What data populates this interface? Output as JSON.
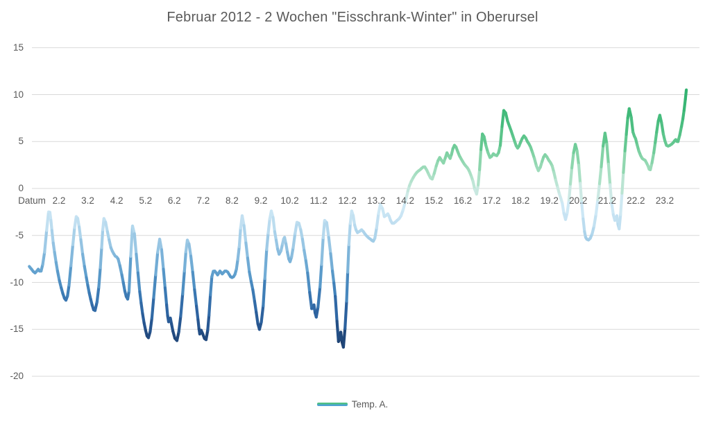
{
  "title": "Februar 2012 - 2 Wochen \"Eisschrank-Winter\" in Oberursel",
  "legend": {
    "label": "Temp. A.",
    "swatch_top_color": "#4fbf85",
    "swatch_bottom_color": "#4da3d4"
  },
  "axes": {
    "y_ticks": [
      15,
      10,
      5,
      0,
      -5,
      -10,
      -15,
      -20
    ],
    "x_axis_title": "Datum",
    "x_day_labels": [
      "2.2",
      "3.2",
      "4.2",
      "5.2",
      "6.2",
      "7.2",
      "8.2",
      "9.2",
      "10.2",
      "11.2",
      "12.2",
      "13.2",
      "14.2",
      "15.2",
      "16.2",
      "17.2",
      "18.2",
      "19.2",
      "20.2",
      "21.2",
      "22.2",
      "23.2"
    ],
    "gridline_color": "#d9d9d9",
    "text_color": "#595959"
  },
  "chart_data": {
    "type": "line",
    "title": "Februar 2012 - 2 Wochen \"Eisschrank-Winter\" in Oberursel",
    "xlabel": "Datum",
    "ylabel": "",
    "ylim": [
      -20,
      15
    ],
    "x_unit": "Tag im Februar 2012 (Dezimaltag)",
    "y_unit": "°C",
    "grid": "horizontal",
    "legend_position": "bottom-center",
    "color_scale": [
      [
        -17,
        "#1c3a66"
      ],
      [
        -15,
        "#24518a"
      ],
      [
        -13,
        "#2f66a3"
      ],
      [
        -11,
        "#3f7fb8"
      ],
      [
        -9,
        "#5f9fcd"
      ],
      [
        -7,
        "#86badd"
      ],
      [
        -5,
        "#aad2ea"
      ],
      [
        -3.5,
        "#c2e0f1"
      ],
      [
        -2,
        "#cfe9f6"
      ],
      [
        -0.5,
        "#cfeae6"
      ],
      [
        1,
        "#b2e2cb"
      ],
      [
        3,
        "#8dd6ad"
      ],
      [
        5,
        "#62c78f"
      ],
      [
        7,
        "#49bd7f"
      ],
      [
        9,
        "#38b674"
      ],
      [
        11,
        "#2fb06e"
      ]
    ],
    "series": [
      {
        "name": "Temp. A.",
        "points": [
          [
            0.97,
            -8.3
          ],
          [
            1.05,
            -8.6
          ],
          [
            1.17,
            -9.0
          ],
          [
            1.28,
            -8.6
          ],
          [
            1.38,
            -8.8
          ],
          [
            1.5,
            -6.8
          ],
          [
            1.64,
            -2.5
          ],
          [
            1.72,
            -3.4
          ],
          [
            1.8,
            -5.8
          ],
          [
            1.95,
            -8.8
          ],
          [
            2.08,
            -10.6
          ],
          [
            2.24,
            -11.9
          ],
          [
            2.35,
            -10.3
          ],
          [
            2.48,
            -6.0
          ],
          [
            2.6,
            -3.0
          ],
          [
            2.7,
            -4.1
          ],
          [
            2.82,
            -7.0
          ],
          [
            2.95,
            -9.5
          ],
          [
            3.1,
            -11.8
          ],
          [
            3.25,
            -13.0
          ],
          [
            3.38,
            -10.5
          ],
          [
            3.48,
            -6.3
          ],
          [
            3.56,
            -3.2
          ],
          [
            3.68,
            -4.6
          ],
          [
            3.8,
            -6.3
          ],
          [
            3.95,
            -7.2
          ],
          [
            4.05,
            -7.5
          ],
          [
            4.18,
            -9.2
          ],
          [
            4.33,
            -11.5
          ],
          [
            4.43,
            -10.9
          ],
          [
            4.55,
            -4.0
          ],
          [
            4.68,
            -7.0
          ],
          [
            4.8,
            -11.0
          ],
          [
            4.95,
            -14.3
          ],
          [
            5.1,
            -15.9
          ],
          [
            5.22,
            -13.8
          ],
          [
            5.35,
            -9.2
          ],
          [
            5.49,
            -5.4
          ],
          [
            5.62,
            -8.6
          ],
          [
            5.73,
            -12.4
          ],
          [
            5.8,
            -14.2
          ],
          [
            5.86,
            -13.8
          ],
          [
            5.95,
            -15.2
          ],
          [
            6.09,
            -16.2
          ],
          [
            6.22,
            -13.6
          ],
          [
            6.35,
            -8.8
          ],
          [
            6.45,
            -5.5
          ],
          [
            6.57,
            -7.2
          ],
          [
            6.7,
            -10.8
          ],
          [
            6.82,
            -14.0
          ],
          [
            6.88,
            -15.5
          ],
          [
            6.93,
            -15.1
          ],
          [
            7.1,
            -16.1
          ],
          [
            7.2,
            -13.5
          ],
          [
            7.3,
            -9.4
          ],
          [
            7.4,
            -8.8
          ],
          [
            7.5,
            -9.2
          ],
          [
            7.58,
            -8.8
          ],
          [
            7.66,
            -9.1
          ],
          [
            7.75,
            -8.8
          ],
          [
            7.85,
            -8.9
          ],
          [
            7.95,
            -9.4
          ],
          [
            8.05,
            -9.4
          ],
          [
            8.15,
            -8.6
          ],
          [
            8.25,
            -6.2
          ],
          [
            8.35,
            -2.9
          ],
          [
            8.48,
            -5.8
          ],
          [
            8.6,
            -8.9
          ],
          [
            8.72,
            -10.8
          ],
          [
            8.84,
            -13.2
          ],
          [
            8.95,
            -15.0
          ],
          [
            9.08,
            -12.5
          ],
          [
            9.2,
            -6.5
          ],
          [
            9.36,
            -2.4
          ],
          [
            9.48,
            -4.6
          ],
          [
            9.63,
            -7.0
          ],
          [
            9.75,
            -5.9
          ],
          [
            9.82,
            -5.2
          ],
          [
            9.92,
            -6.8
          ],
          [
            10.01,
            -7.8
          ],
          [
            10.12,
            -6.3
          ],
          [
            10.25,
            -3.6
          ],
          [
            10.38,
            -4.4
          ],
          [
            10.5,
            -6.6
          ],
          [
            10.62,
            -9.0
          ],
          [
            10.76,
            -12.8
          ],
          [
            10.84,
            -12.4
          ],
          [
            10.92,
            -13.7
          ],
          [
            11.05,
            -10.5
          ],
          [
            11.21,
            -3.4
          ],
          [
            11.35,
            -5.2
          ],
          [
            11.48,
            -8.8
          ],
          [
            11.58,
            -11.5
          ],
          [
            11.69,
            -16.3
          ],
          [
            11.77,
            -15.3
          ],
          [
            11.86,
            -16.9
          ],
          [
            11.97,
            -12.0
          ],
          [
            12.05,
            -6.0
          ],
          [
            12.15,
            -2.4
          ],
          [
            12.25,
            -3.9
          ],
          [
            12.35,
            -4.7
          ],
          [
            12.49,
            -4.4
          ],
          [
            12.62,
            -4.9
          ],
          [
            12.8,
            -5.4
          ],
          [
            12.95,
            -5.3
          ],
          [
            13.14,
            -1.7
          ],
          [
            13.28,
            -3.0
          ],
          [
            13.4,
            -2.7
          ],
          [
            13.55,
            -3.7
          ],
          [
            13.72,
            -3.4
          ],
          [
            13.86,
            -2.9
          ],
          [
            14.0,
            -1.5
          ],
          [
            14.15,
            0.3
          ],
          [
            14.35,
            1.5
          ],
          [
            14.52,
            2.0
          ],
          [
            14.68,
            2.3
          ],
          [
            14.82,
            1.5
          ],
          [
            14.94,
            1.0
          ],
          [
            15.08,
            2.4
          ],
          [
            15.2,
            3.3
          ],
          [
            15.33,
            2.7
          ],
          [
            15.45,
            3.8
          ],
          [
            15.56,
            3.2
          ],
          [
            15.71,
            4.6
          ],
          [
            15.88,
            3.5
          ],
          [
            16.05,
            2.6
          ],
          [
            16.2,
            2.0
          ],
          [
            16.35,
            0.8
          ],
          [
            16.48,
            -0.6
          ],
          [
            16.58,
            2.0
          ],
          [
            16.68,
            5.8
          ],
          [
            16.8,
            4.6
          ],
          [
            16.94,
            3.3
          ],
          [
            17.06,
            3.7
          ],
          [
            17.18,
            3.5
          ],
          [
            17.3,
            4.6
          ],
          [
            17.42,
            8.3
          ],
          [
            17.55,
            7.2
          ],
          [
            17.68,
            6.1
          ],
          [
            17.8,
            5.0
          ],
          [
            17.9,
            4.3
          ],
          [
            18.0,
            4.9
          ],
          [
            18.12,
            5.6
          ],
          [
            18.24,
            5.0
          ],
          [
            18.35,
            4.4
          ],
          [
            18.48,
            3.2
          ],
          [
            18.62,
            1.9
          ],
          [
            18.75,
            2.9
          ],
          [
            18.85,
            3.6
          ],
          [
            18.98,
            3.0
          ],
          [
            19.1,
            2.4
          ],
          [
            19.22,
            0.9
          ],
          [
            19.35,
            -0.6
          ],
          [
            19.45,
            -1.6
          ],
          [
            19.56,
            -3.3
          ],
          [
            19.68,
            -1.2
          ],
          [
            19.78,
            2.2
          ],
          [
            19.9,
            4.7
          ],
          [
            20.02,
            2.5
          ],
          [
            20.12,
            -1.5
          ],
          [
            20.22,
            -4.6
          ],
          [
            20.3,
            -5.4
          ],
          [
            20.42,
            -5.3
          ],
          [
            20.55,
            -4.0
          ],
          [
            20.68,
            -1.2
          ],
          [
            20.8,
            2.3
          ],
          [
            20.93,
            5.9
          ],
          [
            21.05,
            2.6
          ],
          [
            21.16,
            -1.6
          ],
          [
            21.27,
            -3.4
          ],
          [
            21.34,
            -2.9
          ],
          [
            21.42,
            -4.3
          ],
          [
            21.52,
            -0.5
          ],
          [
            21.62,
            4.0
          ],
          [
            21.77,
            8.5
          ],
          [
            21.9,
            6.0
          ],
          [
            21.99,
            5.3
          ],
          [
            22.1,
            4.0
          ],
          [
            22.22,
            3.2
          ],
          [
            22.32,
            3.0
          ],
          [
            22.42,
            2.4
          ],
          [
            22.5,
            2.0
          ],
          [
            22.62,
            3.8
          ],
          [
            22.72,
            6.0
          ],
          [
            22.83,
            7.8
          ],
          [
            22.95,
            5.8
          ],
          [
            23.06,
            4.6
          ],
          [
            23.18,
            4.6
          ],
          [
            23.3,
            4.9
          ],
          [
            23.38,
            5.2
          ],
          [
            23.46,
            5.0
          ],
          [
            23.58,
            6.6
          ],
          [
            23.67,
            8.3
          ],
          [
            23.75,
            10.5
          ]
        ]
      }
    ]
  }
}
